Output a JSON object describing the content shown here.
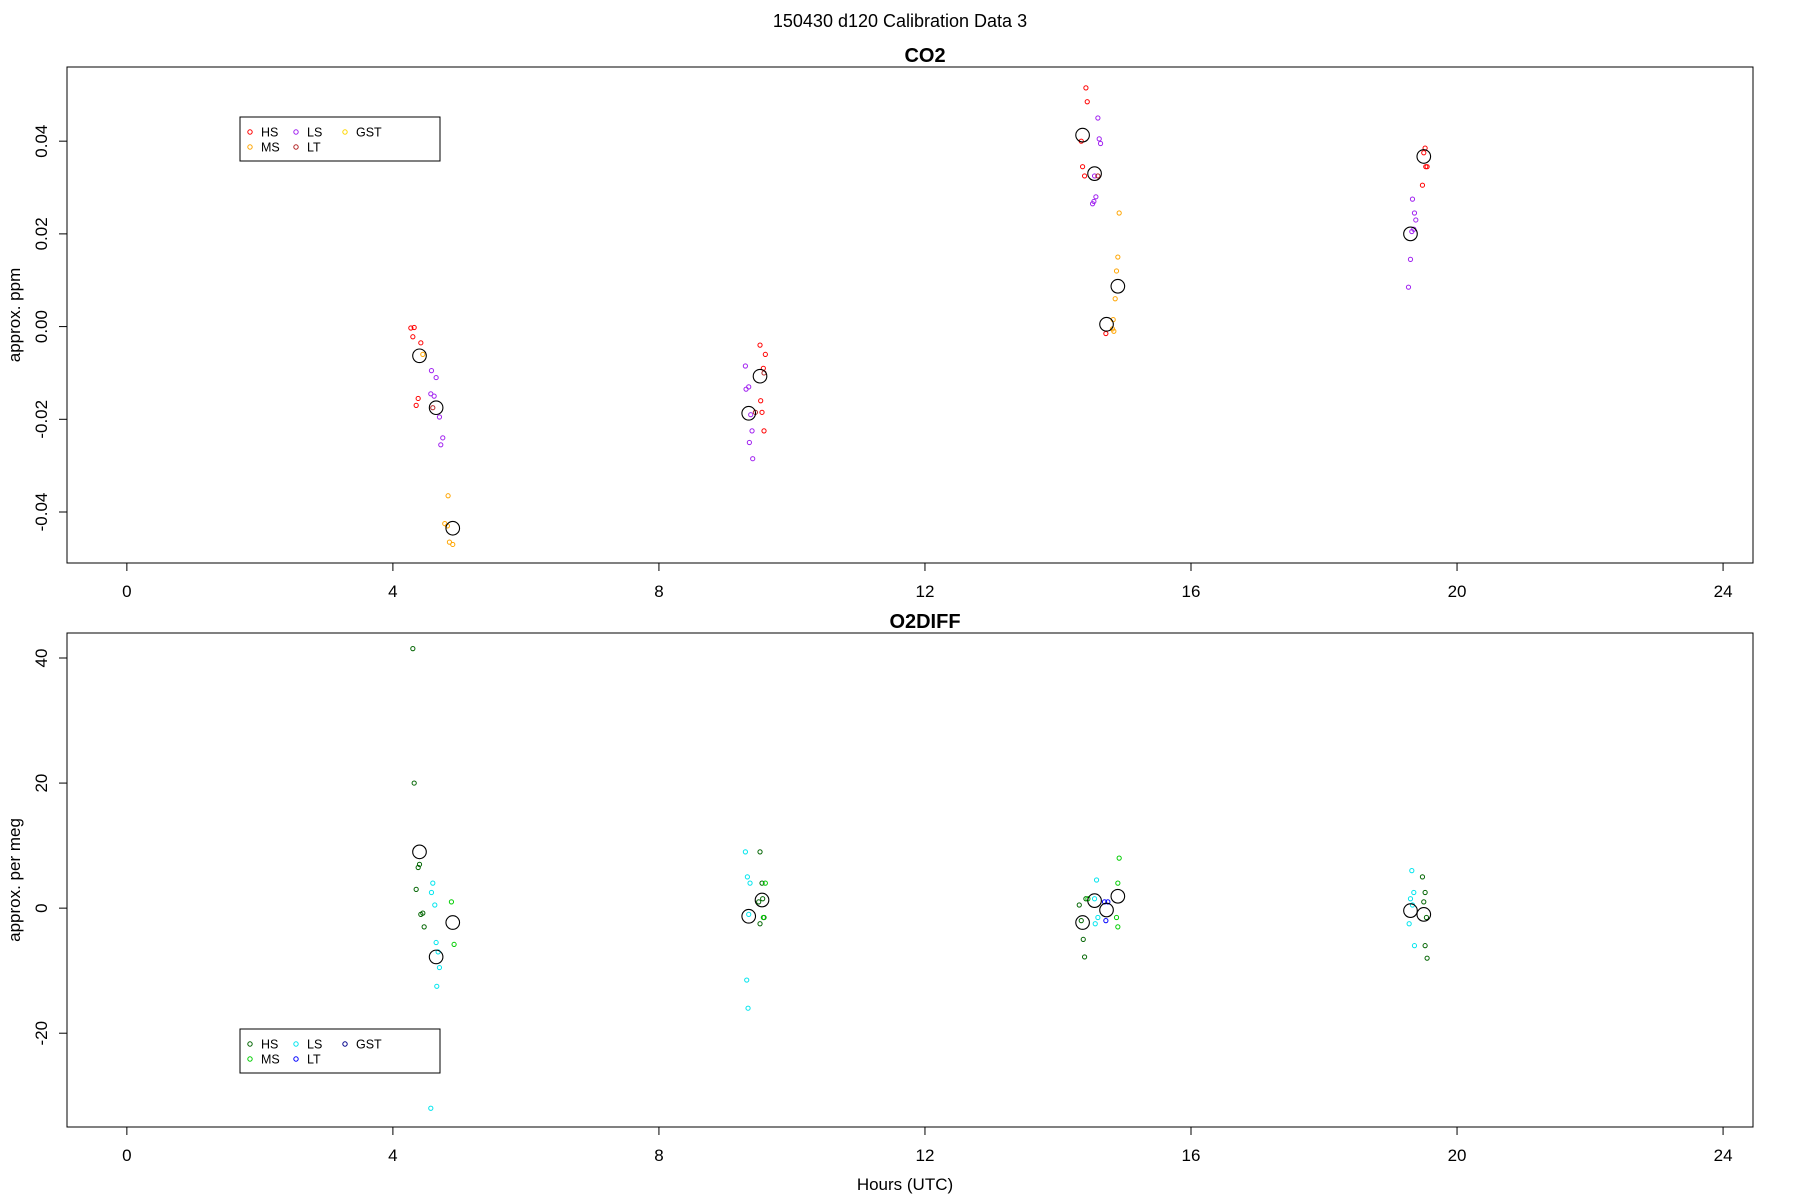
{
  "figure_title": "150430   d120   Calibration Data 3",
  "chart_data": [
    {
      "type": "scatter",
      "title": "CO2",
      "xlabel": "",
      "ylabel": "approx. ppm",
      "xlim": [
        -0.9,
        24.45
      ],
      "ylim": [
        -0.051,
        0.056
      ],
      "xticks": [
        0,
        4,
        8,
        12,
        16,
        20,
        24
      ],
      "yticks": [
        -0.04,
        -0.02,
        0.0,
        0.02,
        0.04
      ],
      "ytick_labels": [
        "-0.04",
        "-0.02",
        "0.00",
        "0.02",
        "0.04"
      ],
      "grid": false,
      "legend": {
        "placement": "top-left",
        "entries": [
          {
            "name": "HS",
            "color": "#ff0000"
          },
          {
            "name": "MS",
            "color": "#ffa500"
          },
          {
            "name": "LS",
            "color": "#a020f0"
          },
          {
            "name": "LT",
            "color": "#b22222"
          },
          {
            "name": "GST",
            "color": "#ffd700"
          }
        ]
      },
      "series": [
        {
          "name": "HS",
          "color": "#ff0000",
          "points": [
            [
              4.27,
              -0.0003
            ],
            [
              4.32,
              -0.0002
            ],
            [
              4.3,
              -0.0022
            ],
            [
              4.42,
              -0.0035
            ],
            [
              4.38,
              -0.0155
            ],
            [
              4.35,
              -0.017
            ],
            [
              9.52,
              -0.004
            ],
            [
              9.6,
              -0.006
            ],
            [
              9.57,
              -0.009
            ],
            [
              9.53,
              -0.016
            ],
            [
              9.55,
              -0.0185
            ],
            [
              9.58,
              -0.0225
            ],
            [
              14.35,
              0.04
            ],
            [
              14.42,
              0.0515
            ],
            [
              14.44,
              0.0485
            ],
            [
              14.37,
              0.0345
            ],
            [
              14.4,
              0.0325
            ],
            [
              14.72,
              -0.0015
            ],
            [
              19.52,
              0.0385
            ],
            [
              19.5,
              0.0375
            ],
            [
              19.48,
              0.0305
            ],
            [
              19.53,
              0.0345
            ],
            [
              19.55,
              0.0345
            ]
          ]
        },
        {
          "name": "MS",
          "color": "#ffa500",
          "points": [
            [
              4.45,
              -0.006
            ],
            [
              4.83,
              -0.0365
            ],
            [
              4.78,
              -0.0425
            ],
            [
              4.85,
              -0.0465
            ],
            [
              4.9,
              -0.047
            ],
            [
              4.82,
              -0.043
            ],
            [
              14.92,
              0.0245
            ],
            [
              14.9,
              0.015
            ],
            [
              14.88,
              0.012
            ],
            [
              14.86,
              0.006
            ],
            [
              14.83,
              0.0015
            ],
            [
              14.82,
              -0.0005
            ],
            [
              14.84,
              -0.001
            ]
          ]
        },
        {
          "name": "LS",
          "color": "#a020f0",
          "points": [
            [
              4.58,
              -0.0095
            ],
            [
              4.65,
              -0.011
            ],
            [
              4.57,
              -0.0145
            ],
            [
              4.62,
              -0.015
            ],
            [
              4.7,
              -0.0195
            ],
            [
              4.75,
              -0.024
            ],
            [
              4.72,
              -0.0255
            ],
            [
              9.3,
              -0.0085
            ],
            [
              9.35,
              -0.013
            ],
            [
              9.31,
              -0.0135
            ],
            [
              9.38,
              -0.019
            ],
            [
              9.4,
              -0.0225
            ],
            [
              9.36,
              -0.025
            ],
            [
              9.41,
              -0.0285
            ],
            [
              14.6,
              0.045
            ],
            [
              14.62,
              0.0405
            ],
            [
              14.64,
              0.0395
            ],
            [
              14.55,
              0.0325
            ],
            [
              14.57,
              0.028
            ],
            [
              14.54,
              0.027
            ],
            [
              14.52,
              0.0265
            ],
            [
              19.33,
              0.0275
            ],
            [
              19.36,
              0.0245
            ],
            [
              19.38,
              0.023
            ],
            [
              19.35,
              0.021
            ],
            [
              19.32,
              0.0205
            ],
            [
              19.3,
              0.0145
            ],
            [
              19.27,
              0.0085
            ]
          ]
        },
        {
          "name": "LT",
          "color": "#b22222",
          "points": [
            [
              4.6,
              -0.0175
            ],
            [
              9.45,
              -0.0185
            ],
            [
              9.58,
              -0.01
            ],
            [
              14.6,
              0.0325
            ]
          ]
        },
        {
          "name": "GST",
          "color": "#ffd700",
          "points": []
        },
        {
          "name": "mean",
          "color": "#000000",
          "large": true,
          "points": [
            [
              4.4,
              -0.0063
            ],
            [
              4.65,
              -0.0175
            ],
            [
              4.9,
              -0.0435
            ],
            [
              9.35,
              -0.0187
            ],
            [
              9.52,
              -0.0107
            ],
            [
              14.37,
              0.0413
            ],
            [
              14.55,
              0.033
            ],
            [
              14.73,
              0.0005
            ],
            [
              14.9,
              0.0087
            ],
            [
              19.3,
              0.02
            ],
            [
              19.5,
              0.0367
            ]
          ]
        }
      ]
    },
    {
      "type": "scatter",
      "title": "O2DIFF",
      "xlabel": "Hours (UTC)",
      "ylabel": "approx. per meg",
      "xlim": [
        -0.9,
        24.45
      ],
      "ylim": [
        -35,
        44
      ],
      "xticks": [
        0,
        4,
        8,
        12,
        16,
        20,
        24
      ],
      "yticks": [
        -20,
        0,
        20,
        40
      ],
      "ytick_labels": [
        "-20",
        "0",
        "20",
        "40"
      ],
      "grid": false,
      "legend": {
        "placement": "bottom-left",
        "entries": [
          {
            "name": "HS",
            "color": "#006400"
          },
          {
            "name": "MS",
            "color": "#00cd00"
          },
          {
            "name": "LS",
            "color": "#00e5ee"
          },
          {
            "name": "LT",
            "color": "#0000ff"
          },
          {
            "name": "GST",
            "color": "#00008b"
          }
        ]
      },
      "series": [
        {
          "name": "HS",
          "color": "#006400",
          "points": [
            [
              4.3,
              41.5
            ],
            [
              4.32,
              20.0
            ],
            [
              4.4,
              7.0
            ],
            [
              4.38,
              6.5
            ],
            [
              4.35,
              3.0
            ],
            [
              4.45,
              -0.8
            ],
            [
              4.42,
              -1.0
            ],
            [
              4.47,
              -3.0
            ],
            [
              9.52,
              9.0
            ],
            [
              9.55,
              4.0
            ],
            [
              9.56,
              1.5
            ],
            [
              9.5,
              1.0
            ],
            [
              9.58,
              -1.5
            ],
            [
              9.52,
              -2.5
            ],
            [
              14.35,
              -2.0
            ],
            [
              14.38,
              -5.0
            ],
            [
              14.4,
              -7.8
            ],
            [
              14.32,
              0.5
            ],
            [
              14.42,
              1.5
            ],
            [
              19.48,
              5.0
            ],
            [
              19.52,
              2.5
            ],
            [
              19.5,
              1.0
            ],
            [
              19.54,
              -1.5
            ],
            [
              19.52,
              -6.0
            ],
            [
              19.55,
              -8.0
            ]
          ]
        },
        {
          "name": "MS",
          "color": "#00cd00",
          "points": [
            [
              4.88,
              1.0
            ],
            [
              4.92,
              -5.8
            ],
            [
              9.6,
              4.0
            ],
            [
              9.57,
              -1.5
            ],
            [
              14.92,
              8.0
            ],
            [
              14.9,
              4.0
            ],
            [
              14.88,
              -1.5
            ],
            [
              14.9,
              -3.0
            ],
            [
              14.45,
              1.5
            ]
          ]
        },
        {
          "name": "LS",
          "color": "#00e5ee",
          "points": [
            [
              4.6,
              4.0
            ],
            [
              4.58,
              2.5
            ],
            [
              4.63,
              0.5
            ],
            [
              4.65,
              -5.5
            ],
            [
              4.68,
              -7.0
            ],
            [
              4.7,
              -9.5
            ],
            [
              4.66,
              -12.5
            ],
            [
              4.57,
              -32.0
            ],
            [
              9.3,
              9.0
            ],
            [
              9.33,
              5.0
            ],
            [
              9.37,
              4.0
            ],
            [
              9.35,
              -1.0
            ],
            [
              9.32,
              -11.5
            ],
            [
              9.34,
              -16.0
            ],
            [
              14.58,
              4.5
            ],
            [
              14.55,
              1.5
            ],
            [
              14.6,
              -1.5
            ],
            [
              14.56,
              -2.5
            ],
            [
              19.32,
              6.0
            ],
            [
              19.35,
              2.5
            ],
            [
              19.3,
              1.5
            ],
            [
              19.33,
              0.5
            ],
            [
              19.28,
              -2.5
            ],
            [
              19.36,
              -6.0
            ]
          ]
        },
        {
          "name": "LT",
          "color": "#0000ff",
          "points": [
            [
              14.7,
              1.0
            ],
            [
              14.75,
              1.0
            ],
            [
              14.72,
              -2.0
            ]
          ]
        },
        {
          "name": "GST",
          "color": "#00008b",
          "points": []
        },
        {
          "name": "mean",
          "color": "#000000",
          "large": true,
          "points": [
            [
              4.4,
              9.0
            ],
            [
              4.65,
              -7.8
            ],
            [
              4.9,
              -2.3
            ],
            [
              9.35,
              -1.3
            ],
            [
              9.55,
              1.3
            ],
            [
              14.37,
              -2.3
            ],
            [
              14.55,
              1.2
            ],
            [
              14.73,
              -0.3
            ],
            [
              14.9,
              1.9
            ],
            [
              19.3,
              -0.4
            ],
            [
              19.5,
              -1.0
            ]
          ]
        }
      ]
    }
  ]
}
